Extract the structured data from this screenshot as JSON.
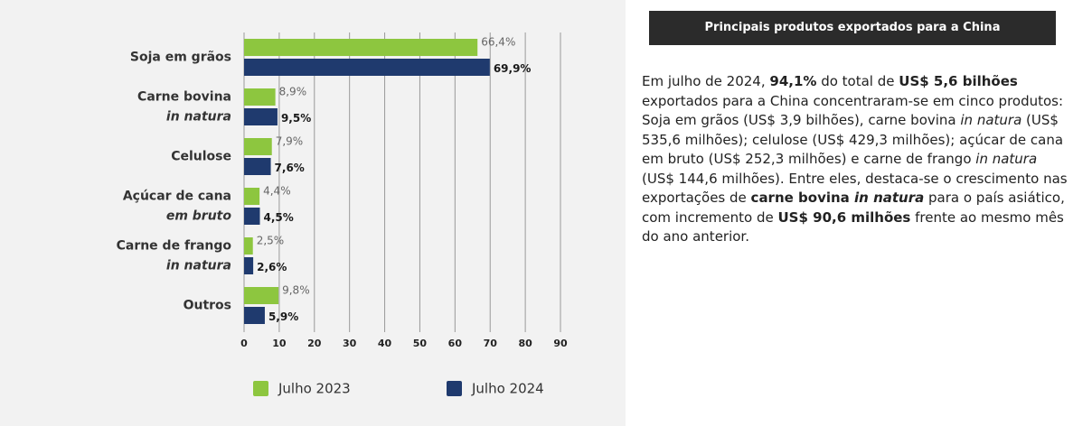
{
  "chart_data": {
    "type": "bar",
    "orientation": "horizontal",
    "categories": [
      [
        "Soja em grãos"
      ],
      [
        "Carne bovina",
        "in natura"
      ],
      [
        "Celulose"
      ],
      [
        "Açúcar de cana",
        "em bruto"
      ],
      [
        "Carne de frango",
        "in natura"
      ],
      [
        "Outros"
      ]
    ],
    "series": [
      {
        "name": "Julho 2023",
        "color": "#8dc63f",
        "values": [
          66.4,
          8.9,
          7.9,
          4.4,
          2.5,
          9.8
        ],
        "value_labels": [
          "66,4%",
          "8,9%",
          "7,9%",
          "4,4%",
          "2,5%",
          "9,8%"
        ]
      },
      {
        "name": "Julho 2024",
        "color": "#1f3a6e",
        "values": [
          69.9,
          9.5,
          7.6,
          4.5,
          2.6,
          5.9
        ],
        "value_labels": [
          "69,9%",
          "9,5%",
          "7,6%",
          "4,5%",
          "2,6%",
          "5,9%"
        ]
      }
    ],
    "xlim": [
      0,
      90
    ],
    "xticks": [
      0,
      10,
      20,
      30,
      40,
      50,
      60,
      70,
      80,
      90
    ],
    "grid": true,
    "legend": "bottom"
  },
  "panel": {
    "title": "Principais produtos exportados para a China",
    "body": [
      {
        "text": "Em julho de 2024, ",
        "style": "normal"
      },
      {
        "text": "94,1%",
        "style": "bold"
      },
      {
        "text": " do total de ",
        "style": "normal"
      },
      {
        "text": "US$ 5,6 bilhões",
        "style": "bold"
      },
      {
        "text": " exportados para a China concentraram-se em cinco produtos: Soja em grãos (US$ 3,9 bilhões), carne bovina ",
        "style": "normal"
      },
      {
        "text": "in natura",
        "style": "italic"
      },
      {
        "text": " (US$ 535,6 milhões); celulose (US$ 429,3 milhões); açúcar de cana em bruto (US$ 252,3 milhões) e carne de frango ",
        "style": "normal"
      },
      {
        "text": "in natura",
        "style": "italic"
      },
      {
        "text": " (US$ 144,6 milhões). Entre eles, destaca-se o crescimento nas exportações de ",
        "style": "normal"
      },
      {
        "text": "carne bovina ",
        "style": "bold"
      },
      {
        "text": "in natura",
        "style": "bold-italic"
      },
      {
        "text": " para o país asiático, com incremento de ",
        "style": "normal"
      },
      {
        "text": "US$ 90,6 milhões",
        "style": "bold"
      },
      {
        "text": " frente ao mesmo mês do ano anterior.",
        "style": "normal"
      }
    ]
  }
}
